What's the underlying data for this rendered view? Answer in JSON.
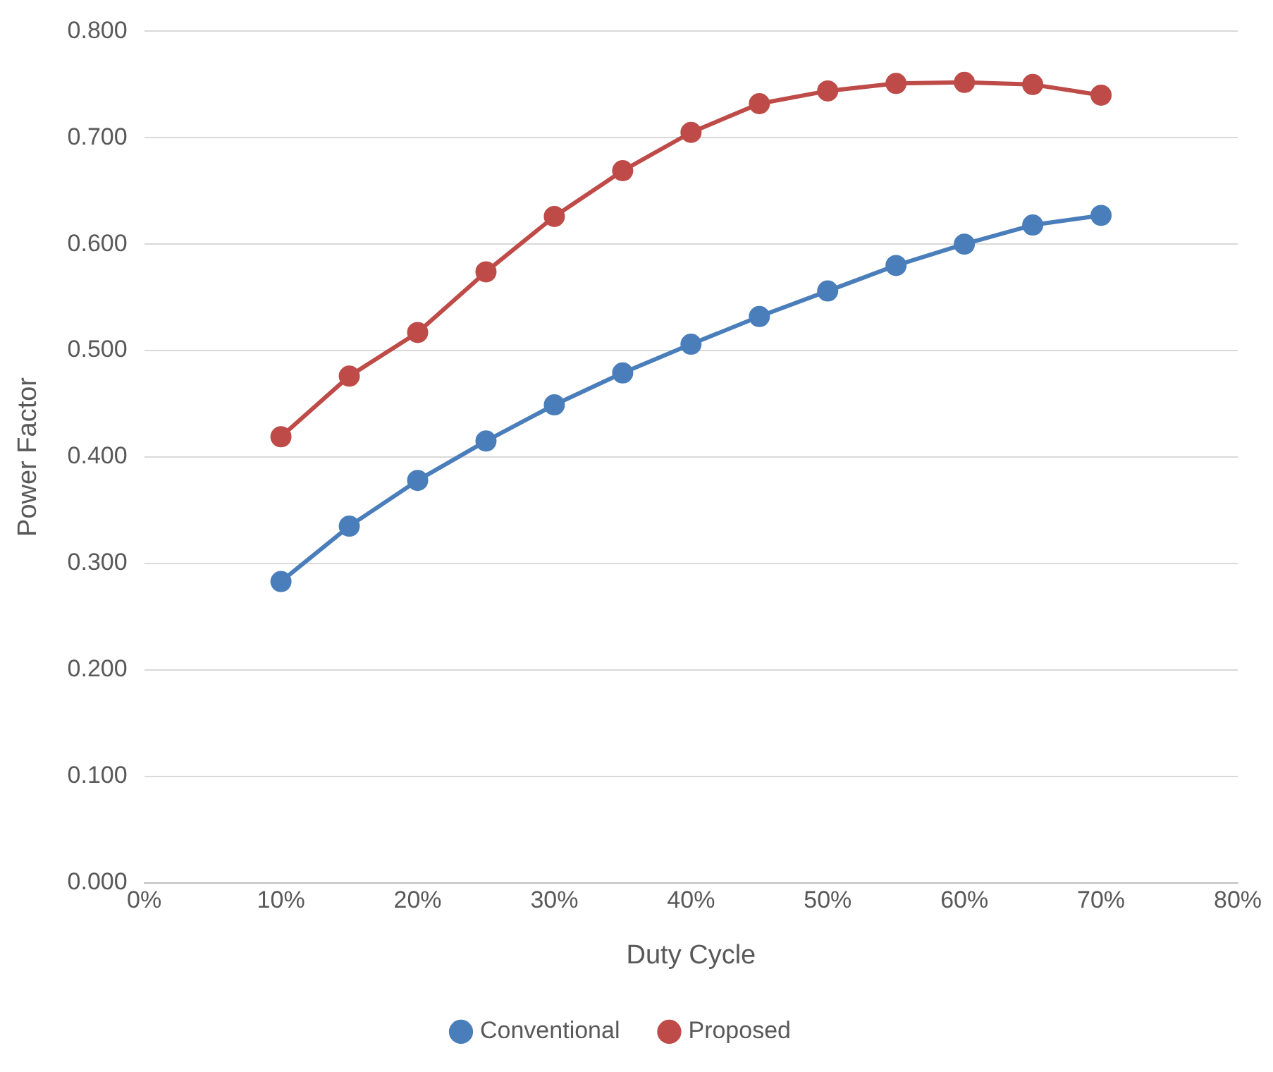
{
  "chart_data": {
    "type": "line",
    "xlabel": "Duty Cycle",
    "ylabel": "Power Factor",
    "x": [
      10,
      15,
      20,
      25,
      30,
      35,
      40,
      45,
      50,
      55,
      60,
      65,
      70
    ],
    "series": [
      {
        "name": "Conventional",
        "color": "#4a7ebb",
        "values": [
          0.283,
          0.335,
          0.378,
          0.415,
          0.449,
          0.479,
          0.506,
          0.532,
          0.556,
          0.58,
          0.6,
          0.618,
          0.627
        ]
      },
      {
        "name": "Proposed",
        "color": "#be4b48",
        "values": [
          0.419,
          0.476,
          0.517,
          0.574,
          0.626,
          0.669,
          0.705,
          0.732,
          0.744,
          0.751,
          0.752,
          0.75,
          0.74
        ]
      }
    ],
    "xlim": [
      0,
      80
    ],
    "xticks": [
      {
        "value": 0,
        "label": "0%"
      },
      {
        "value": 10,
        "label": "10%"
      },
      {
        "value": 20,
        "label": "20%"
      },
      {
        "value": 30,
        "label": "30%"
      },
      {
        "value": 40,
        "label": "40%"
      },
      {
        "value": 50,
        "label": "50%"
      },
      {
        "value": 60,
        "label": "60%"
      },
      {
        "value": 70,
        "label": "70%"
      },
      {
        "value": 80,
        "label": "80%"
      }
    ],
    "ylim": [
      0,
      0.8
    ],
    "yticks": [
      {
        "value": 0,
        "label": "0.000"
      },
      {
        "value": 0.1,
        "label": "0.100"
      },
      {
        "value": 0.2,
        "label": "0.200"
      },
      {
        "value": 0.3,
        "label": "0.300"
      },
      {
        "value": 0.4,
        "label": "0.400"
      },
      {
        "value": 0.5,
        "label": "0.500"
      },
      {
        "value": 0.6,
        "label": "0.600"
      },
      {
        "value": 0.7,
        "label": "0.700"
      },
      {
        "value": 0.8,
        "label": "0.800"
      }
    ],
    "grid": "y",
    "legend": "bottom",
    "marker": "circle",
    "line_style": "solid"
  }
}
